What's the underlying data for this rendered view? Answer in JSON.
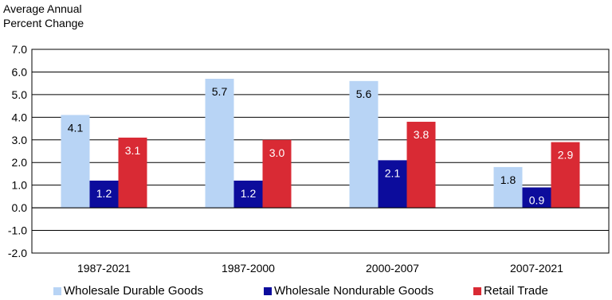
{
  "chart_data": {
    "type": "bar",
    "ylabel": [
      "Average Annual",
      "Percent Change"
    ],
    "categories": [
      "1987-2021",
      "1987-2000",
      "2000-2007",
      "2007-2021"
    ],
    "ylim": [
      -2.0,
      7.0
    ],
    "yticks": [
      "7.0",
      "6.0",
      "5.0",
      "4.0",
      "3.0",
      "2.0",
      "1.0",
      "0.0",
      "-1.0",
      "-2.0"
    ],
    "grid": true,
    "legend_position": "bottom",
    "series": [
      {
        "name": "Wholesale Durable Goods",
        "color": "#b8d4f5",
        "label_color": "#000000",
        "values": [
          4.1,
          5.7,
          5.6,
          1.8
        ],
        "labels": [
          "4.1",
          "5.7",
          "5.6",
          "1.8"
        ]
      },
      {
        "name": "Wholesale Nondurable Goods",
        "color": "#0c0c9c",
        "label_color": "#ffffff",
        "values": [
          1.2,
          1.2,
          2.1,
          0.9
        ],
        "labels": [
          "1.2",
          "1.2",
          "2.1",
          "0.9"
        ]
      },
      {
        "name": "Retail Trade",
        "color": "#d92a34",
        "label_color": "#ffffff",
        "values": [
          3.1,
          3.0,
          3.8,
          2.9
        ],
        "labels": [
          "3.1",
          "3.0",
          "3.8",
          "2.9"
        ]
      }
    ]
  }
}
